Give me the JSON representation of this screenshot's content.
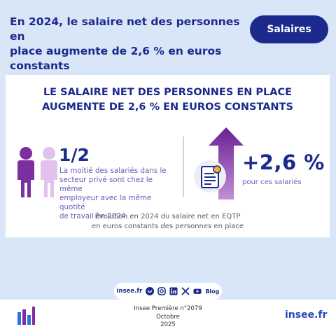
{
  "header": {
    "title_line1": "En 2024, le salaire net des personnes en",
    "title_line2": "place augmente de 2,6 % en euros constants",
    "tag": "Salaires"
  },
  "card": {
    "title_line1": "LE SALAIRE NET DES PERSONNES EN PLACE",
    "title_line2": "AUGMENTE DE 2,6 % EN EUROS CONSTANTS",
    "left": {
      "fraction": "1/2",
      "description_lines": [
        "La moitié des salariés dans le",
        "secteur privé sont chez le même",
        "employeur avec la même quotité",
        "de travail en 2024."
      ]
    },
    "right": {
      "value": "+2,6 %",
      "subtitle": "pour ces salariés"
    },
    "caption_line1": "Évolution en 2024 du salaire net en EQTP",
    "caption_line2": "en euros constants des personnes en place"
  },
  "social": {
    "site": "insee.fr",
    "icons": [
      "bluesky-icon",
      "instagram-icon",
      "linkedin-icon",
      "x-icon",
      "youtube-icon"
    ],
    "blog": "Blog"
  },
  "footer": {
    "publication": "Insee Première n°2079",
    "month": "Octobre",
    "year": "2025",
    "site": "insee.fr"
  },
  "colors": {
    "background": "#d8e6f8",
    "navy": "#1b2a8c",
    "purple": "#7b2fa0",
    "light_purple": "#e2c2ec"
  }
}
